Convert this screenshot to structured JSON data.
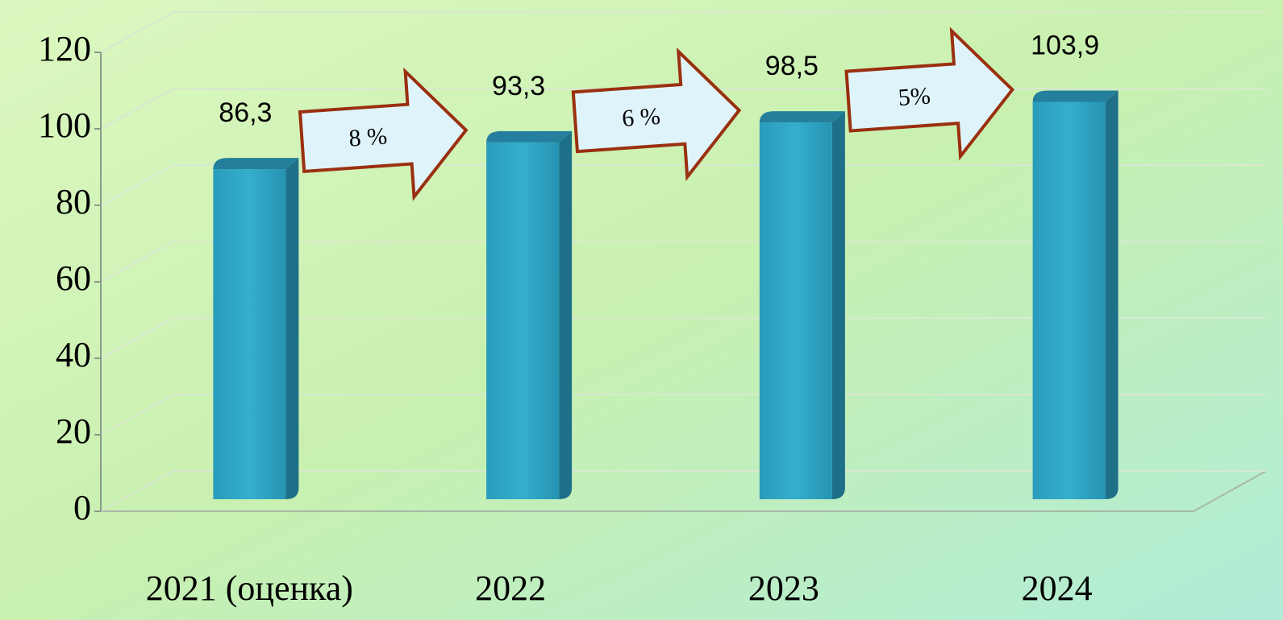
{
  "chart_data": {
    "type": "bar3d",
    "categories": [
      "2021 (оценка)",
      "2022",
      "2023",
      "2024"
    ],
    "values": [
      86.3,
      93.3,
      98.5,
      103.9
    ],
    "value_labels": [
      "86,3",
      "93,3",
      "98,5",
      "103,9"
    ],
    "color": "#2ea6c4",
    "ylim": [
      0,
      120
    ],
    "yticks": [
      0,
      20,
      40,
      60,
      80,
      100,
      120
    ],
    "grid": true,
    "annotations": [
      "8 %",
      "6 %",
      "5%"
    ]
  }
}
